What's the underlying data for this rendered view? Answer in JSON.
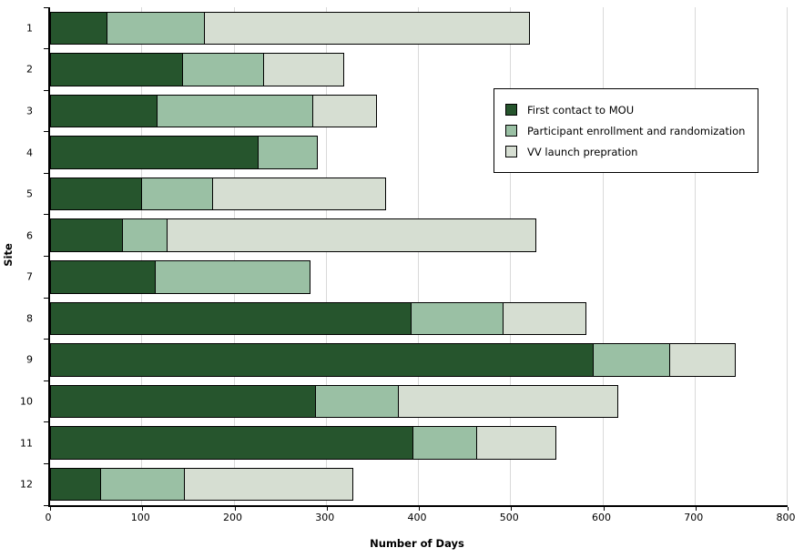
{
  "chart_data": {
    "type": "bar",
    "orientation": "horizontal",
    "stacked": true,
    "title": "",
    "xlabel": "Number of Days",
    "ylabel": "Site",
    "xlim": [
      0,
      800
    ],
    "xticks": [
      0,
      100,
      200,
      300,
      400,
      500,
      600,
      700,
      800
    ],
    "grid": "vertical",
    "legend_position": "inside-top-right",
    "categories": [
      "1",
      "2",
      "3",
      "4",
      "5",
      "6",
      "7",
      "8",
      "9",
      "10",
      "11",
      "12"
    ],
    "series": [
      {
        "name": "First contact to MOU",
        "color": "#26552d",
        "values": [
          62,
          144,
          117,
          226,
          100,
          79,
          115,
          392,
          590,
          288,
          394,
          55
        ]
      },
      {
        "name": "Participant enrollment and randomization",
        "color": "#9ac0a4",
        "values": [
          107,
          89,
          169,
          65,
          78,
          49,
          168,
          101,
          84,
          91,
          70,
          92
        ]
      },
      {
        "name": "VV launch prepration",
        "color": "#d6ded2",
        "values": [
          353,
          88,
          71,
          0,
          188,
          401,
          0,
          91,
          72,
          239,
          87,
          184
        ]
      }
    ]
  },
  "colors": {
    "background": "#ffffff",
    "gridline": "#d9d9d9",
    "axis": "#000000",
    "bar_border": "#000000",
    "legend_border": "#000000"
  }
}
